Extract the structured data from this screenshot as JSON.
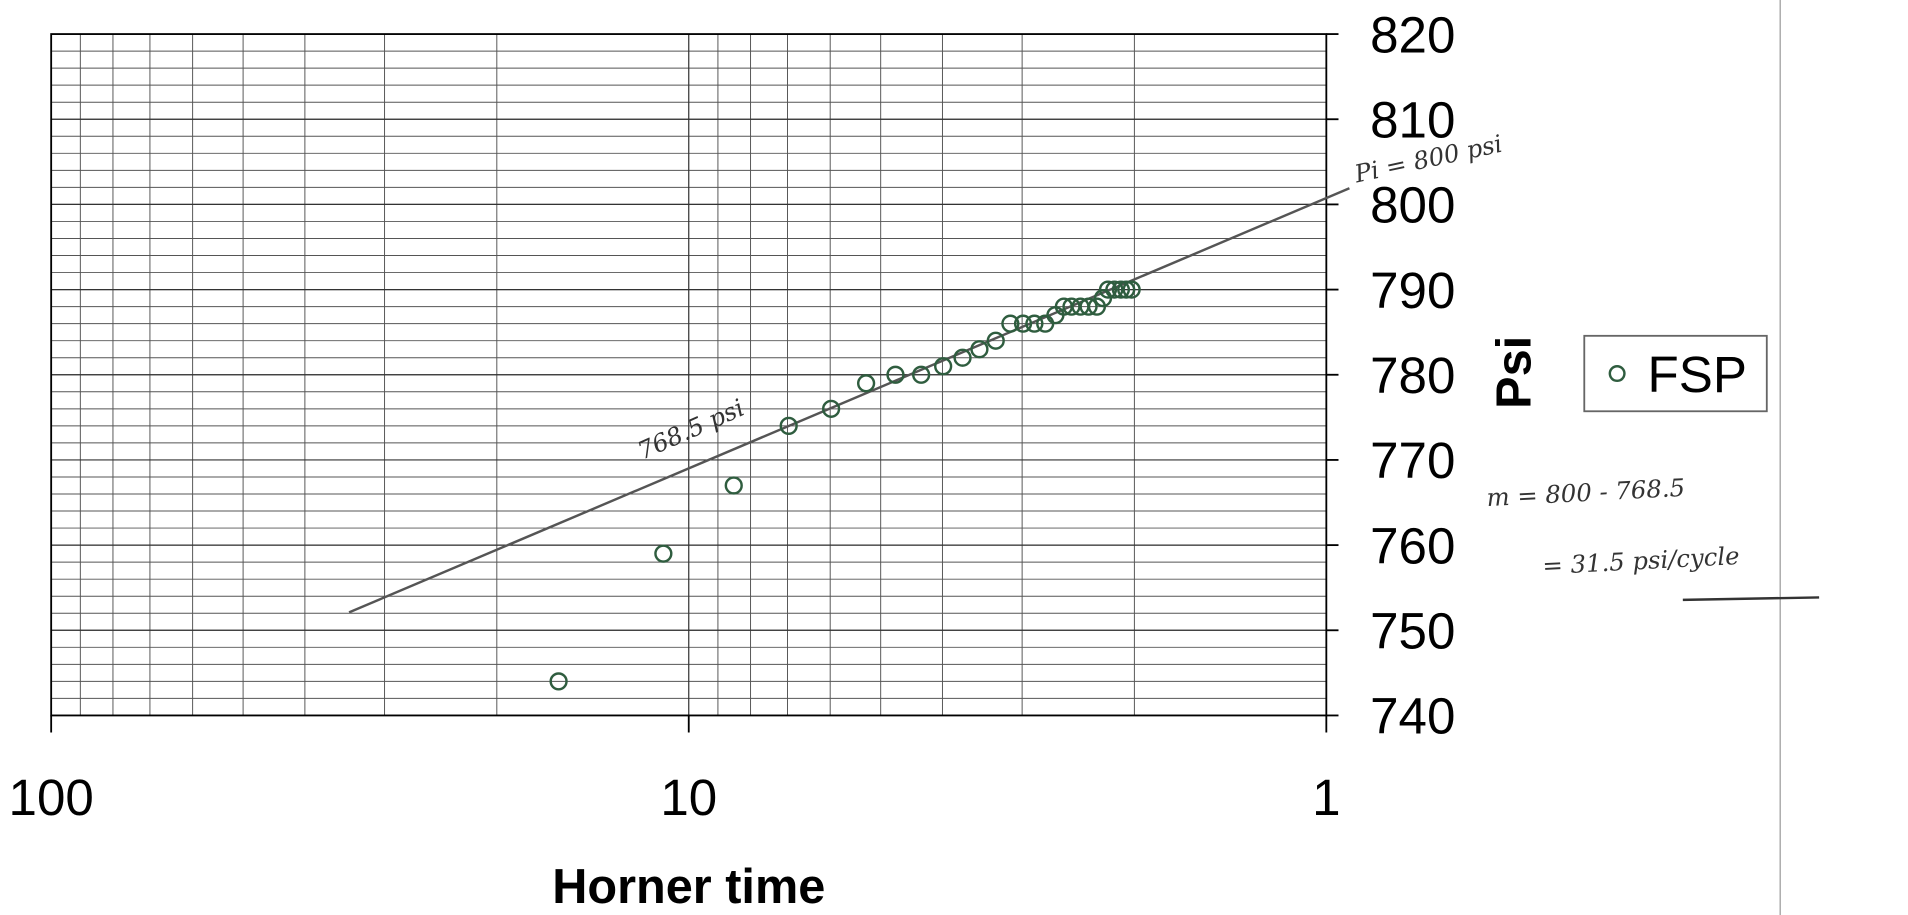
{
  "chart_data": {
    "type": "scatter",
    "x_label": "Horner time",
    "y_label": "Psi",
    "xscale": "log",
    "xlim": [
      100,
      1
    ],
    "xticks": [
      100,
      10,
      1
    ],
    "ylim": [
      740,
      820
    ],
    "yticks": [
      740,
      750,
      760,
      770,
      780,
      790,
      800,
      810,
      820
    ],
    "grid": true,
    "legend": "right",
    "series": [
      {
        "name": "FSP",
        "color": "#2f5d3f",
        "x": [
          16.0,
          10.96,
          8.5,
          6.97,
          5.98,
          5.27,
          4.74,
          4.32,
          3.99,
          3.72,
          3.5,
          3.3,
          3.13,
          2.99,
          2.87,
          2.76,
          2.66,
          2.58,
          2.51,
          2.43,
          2.36,
          2.29,
          2.24,
          2.2,
          2.15,
          2.1,
          2.06,
          2.02
        ],
        "values": [
          744,
          759,
          767,
          774,
          776,
          779,
          780,
          780,
          781,
          782,
          783,
          784,
          786,
          786,
          786,
          786,
          787,
          788,
          788,
          788,
          788,
          788,
          789,
          790,
          790,
          790,
          790,
          790
        ]
      }
    ],
    "fit_line": {
      "color": "#555555",
      "x": [
        34.1,
        0.92
      ],
      "values": [
        752.1,
        801.9
      ]
    },
    "annotations": [
      "Pi = 800 psi",
      "768.5 psi",
      "m = 800 - 768.5",
      "= 31.5 psi/cycle"
    ]
  }
}
